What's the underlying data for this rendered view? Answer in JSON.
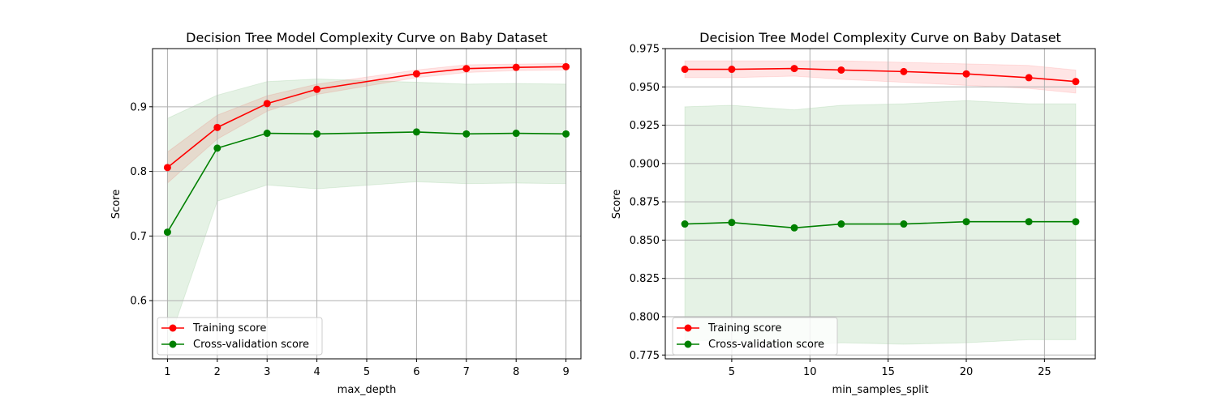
{
  "chart_data": [
    {
      "type": "line",
      "title": "Decision Tree Model Complexity Curve on Baby Dataset",
      "xlabel": "max_depth",
      "ylabel": "Score",
      "xlim": [
        0.7,
        9.3
      ],
      "ylim": [
        0.51,
        0.99
      ],
      "xticks": [
        1,
        2,
        3,
        4,
        5,
        6,
        7,
        8,
        9
      ],
      "yticks": [
        0.6,
        0.7,
        0.8,
        0.9
      ],
      "ytick_labels": [
        "0.6",
        "0.7",
        "0.8",
        "0.9"
      ],
      "grid": true,
      "legend": "lower-left",
      "series": [
        {
          "name": "Training score",
          "color": "#ff0000",
          "x": [
            1,
            2,
            3,
            4,
            6,
            7,
            8,
            9
          ],
          "y": [
            0.806,
            0.868,
            0.905,
            0.927,
            0.951,
            0.959,
            0.961,
            0.962
          ],
          "band_low": [
            0.782,
            0.85,
            0.893,
            0.919,
            0.945,
            0.953,
            0.956,
            0.957
          ],
          "band_high": [
            0.83,
            0.887,
            0.917,
            0.935,
            0.957,
            0.965,
            0.966,
            0.967
          ]
        },
        {
          "name": "Cross-validation score",
          "color": "#008000",
          "x": [
            1,
            2,
            3,
            4,
            6,
            7,
            8,
            9
          ],
          "y": [
            0.706,
            0.836,
            0.859,
            0.858,
            0.861,
            0.858,
            0.859,
            0.858
          ],
          "band_low": [
            0.53,
            0.754,
            0.779,
            0.773,
            0.784,
            0.781,
            0.782,
            0.781
          ],
          "band_high": [
            0.882,
            0.918,
            0.939,
            0.943,
            0.938,
            0.935,
            0.936,
            0.935
          ]
        }
      ]
    },
    {
      "type": "line",
      "title": "Decision Tree Model Complexity Curve on Baby Dataset",
      "xlabel": "min_samples_split",
      "ylabel": "Score",
      "xlim": [
        0.75,
        28.25
      ],
      "ylim": [
        0.7725,
        0.975
      ],
      "xticks": [
        5,
        10,
        15,
        20,
        25
      ],
      "yticks": [
        0.775,
        0.8,
        0.825,
        0.85,
        0.875,
        0.9,
        0.925,
        0.95,
        0.975
      ],
      "ytick_labels": [
        "0.775",
        "0.800",
        "0.825",
        "0.850",
        "0.875",
        "0.900",
        "0.925",
        "0.950",
        "0.975"
      ],
      "grid": true,
      "legend": "lower-left",
      "series": [
        {
          "name": "Training score",
          "color": "#ff0000",
          "x": [
            2,
            5,
            9,
            12,
            16,
            20,
            24,
            27
          ],
          "y": [
            0.9615,
            0.9615,
            0.962,
            0.961,
            0.96,
            0.9585,
            0.956,
            0.9535
          ],
          "band_low": [
            0.956,
            0.956,
            0.957,
            0.955,
            0.953,
            0.951,
            0.949,
            0.946
          ],
          "band_high": [
            0.967,
            0.967,
            0.967,
            0.967,
            0.966,
            0.965,
            0.964,
            0.961
          ]
        },
        {
          "name": "Cross-validation score",
          "color": "#008000",
          "x": [
            2,
            5,
            9,
            12,
            16,
            20,
            24,
            27
          ],
          "y": [
            0.8605,
            0.8615,
            0.858,
            0.8605,
            0.8605,
            0.862,
            0.862,
            0.862
          ],
          "band_low": [
            0.784,
            0.785,
            0.781,
            0.783,
            0.782,
            0.783,
            0.785,
            0.785
          ],
          "band_high": [
            0.937,
            0.938,
            0.935,
            0.938,
            0.939,
            0.941,
            0.939,
            0.939
          ]
        }
      ]
    }
  ]
}
